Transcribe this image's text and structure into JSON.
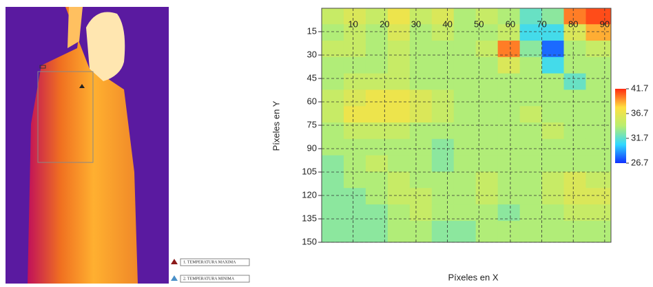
{
  "legend_items": [
    "1. TEMPERATURA MAXIMA",
    "2. TEMPERATURA MINIMA"
  ],
  "chart_data": {
    "type": "heatmap",
    "xlabel": "Píxeles en X",
    "ylabel": "Píxeles en Y",
    "xlim": [
      0,
      92
    ],
    "ylim": [
      150,
      0
    ],
    "xticks": [
      10,
      20,
      30,
      40,
      50,
      60,
      70,
      80,
      90
    ],
    "yticks": [
      15,
      30,
      45,
      60,
      75,
      90,
      105,
      120,
      135,
      150
    ],
    "grid": true,
    "x": [
      3.5,
      10.5,
      17.5,
      24.5,
      31.5,
      38.5,
      45.5,
      52.5,
      59.5,
      66.5,
      73.5,
      80.5,
      87.5
    ],
    "y": [
      5,
      15.5,
      26,
      36.5,
      47,
      57.5,
      68,
      78.5,
      89,
      99.5,
      110,
      120.5,
      131,
      141.5
    ],
    "values": [
      [
        35,
        36,
        35,
        37,
        35,
        36,
        34,
        35,
        34,
        32,
        33,
        40,
        41
      ],
      [
        34,
        35,
        34,
        36,
        34,
        35,
        34,
        34,
        35,
        31,
        31,
        36,
        39
      ],
      [
        35,
        35,
        34,
        35,
        34,
        34,
        34,
        35,
        40,
        33,
        28,
        34,
        35
      ],
      [
        34,
        34,
        34,
        35,
        34,
        34,
        34,
        34,
        36,
        34,
        31,
        34,
        34
      ],
      [
        34,
        35,
        35,
        35,
        34,
        34,
        34,
        34,
        34,
        34,
        34,
        32,
        34
      ],
      [
        35,
        36,
        37,
        37,
        36,
        35,
        34,
        34,
        34,
        34,
        34,
        34,
        34
      ],
      [
        35,
        37,
        37,
        37,
        36,
        35,
        34,
        34,
        34,
        35,
        34,
        34,
        34
      ],
      [
        34,
        35,
        35,
        35,
        34,
        34,
        34,
        34,
        34,
        34,
        35,
        34,
        34
      ],
      [
        34,
        34,
        34,
        34,
        34,
        33,
        34,
        34,
        34,
        34,
        34,
        34,
        34
      ],
      [
        33,
        34,
        35,
        34,
        34,
        33,
        34,
        34,
        34,
        34,
        34,
        34,
        34
      ],
      [
        33,
        34,
        34,
        35,
        34,
        34,
        34,
        35,
        34,
        34,
        35,
        36,
        35
      ],
      [
        33,
        33,
        34,
        35,
        35,
        34,
        34,
        35,
        34,
        34,
        35,
        36,
        36
      ],
      [
        33,
        33,
        33,
        34,
        35,
        34,
        34,
        34,
        33,
        34,
        34,
        35,
        35
      ],
      [
        33,
        33,
        33,
        34,
        34,
        33,
        33,
        34,
        34,
        34,
        34,
        34,
        34
      ]
    ],
    "clim": [
      26.7,
      41.7
    ],
    "cticks": [
      26.7,
      31.7,
      36.7,
      41.7
    ],
    "colormap": [
      "#1030ff",
      "#30d8ff",
      "#b8ee70",
      "#ffe040",
      "#ff2a10"
    ]
  }
}
